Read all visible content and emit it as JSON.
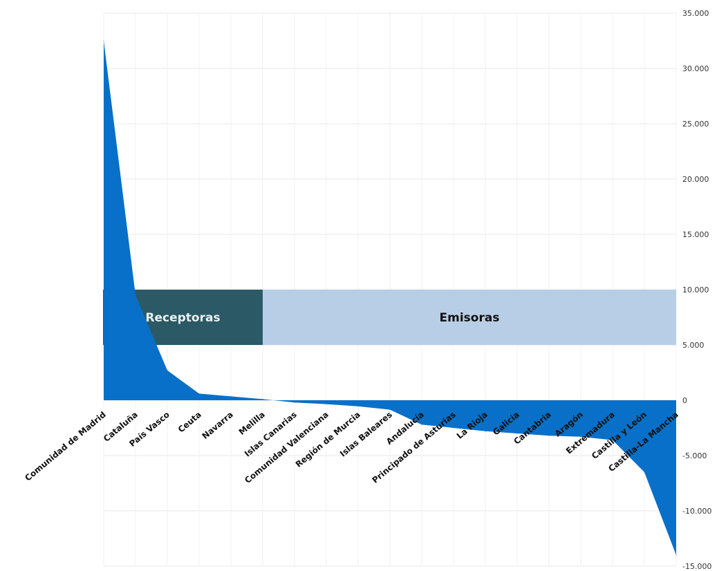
{
  "chart_data": {
    "type": "area",
    "categories": [
      "Comunidad de Madrid",
      "Cataluña",
      "País Vasco",
      "Ceuta",
      "Navarra",
      "Melilla",
      "Islas Canarias",
      "Comunidad Valenciana",
      "Región de Murcia",
      "Islas Baleares",
      "Andalucía",
      "Principado de Asturias",
      "La Rioja",
      "Galicia",
      "Cantabria",
      "Aragón",
      "Extremadura",
      "Castilla y León",
      "Castilla-La Mancha"
    ],
    "values": [
      32500,
      9500,
      2700,
      600,
      350,
      100,
      -200,
      -350,
      -550,
      -850,
      -2200,
      -2500,
      -2800,
      -3000,
      -3200,
      -3300,
      -3600,
      -6500,
      -14000
    ],
    "ylim": [
      -15000,
      35000
    ],
    "yticks": [
      -15000,
      -10000,
      -5000,
      0,
      5000,
      10000,
      15000,
      20000,
      25000,
      30000,
      35000
    ],
    "ytick_labels": [
      "-15.000",
      "-10.000",
      "-5.000",
      "0",
      "5.000",
      "10.000",
      "15.000",
      "20.000",
      "25.000",
      "30.000",
      "35.000"
    ],
    "y_axis_side": "right",
    "grid": true,
    "title": "",
    "xlabel": "",
    "ylabel": "",
    "bands": [
      {
        "label": "Receptoras",
        "y_range": [
          5000,
          10000
        ],
        "x_span": [
          0,
          5
        ],
        "color": "#2b5a66",
        "text_color": "#eaf0f2"
      },
      {
        "label": "Emisoras",
        "y_range": [
          5000,
          10000
        ],
        "x_span": [
          5,
          18
        ],
        "color": "#b8cee6",
        "text_color": "#111111"
      }
    ],
    "colors": {
      "area": "#0870c8",
      "grid": "#e8e8e8"
    }
  }
}
